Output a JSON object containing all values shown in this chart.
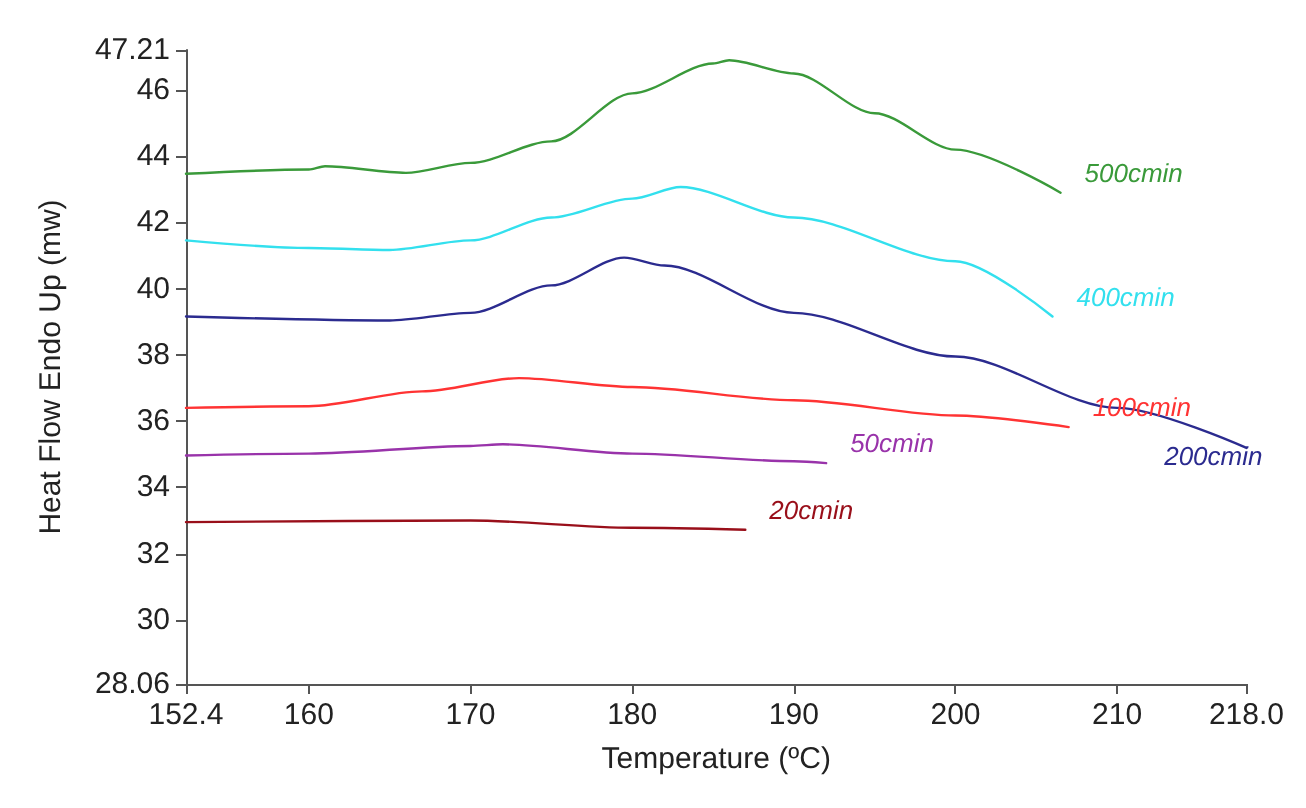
{
  "chart_data": {
    "type": "line",
    "xlabel": "Temperature (ºC)",
    "ylabel": "Heat Flow Endo Up (mw)",
    "xlim": [
      152.4,
      218.0
    ],
    "xticks": [
      152.4,
      160,
      170,
      180,
      190,
      200,
      210,
      {
        "value": 218,
        "label": "218.0"
      }
    ],
    "ylim": [
      28.06,
      47.21
    ],
    "yticks": [
      28.06,
      30,
      32,
      34,
      36,
      38,
      40,
      42,
      44,
      46,
      47.21
    ],
    "grid": false,
    "legend": false,
    "marker": "none",
    "line_style": "solid",
    "series": [
      {
        "name": "500cmin",
        "color": "#3a9a3a",
        "x": [
          152.4,
          160,
          161,
          166,
          170,
          175,
          180,
          185,
          186,
          190,
          195,
          200,
          206.5
        ],
        "values": [
          43.47,
          43.6,
          43.7,
          43.5,
          43.8,
          44.45,
          45.9,
          46.8,
          46.9,
          46.5,
          45.3,
          44.2,
          42.9
        ]
      },
      {
        "name": "400cmin",
        "color": "#33e0ee",
        "x": [
          152.4,
          160,
          165,
          170,
          175,
          180,
          183,
          190,
          200,
          206
        ],
        "values": [
          41.46,
          41.23,
          41.17,
          41.46,
          42.15,
          42.72,
          43.07,
          42.15,
          40.83,
          39.16
        ]
      },
      {
        "name": "200cmin",
        "color": "#2b2b8f",
        "x": [
          152.4,
          165,
          170,
          175,
          179.5,
          182,
          190,
          200,
          210,
          218
        ],
        "values": [
          39.16,
          39.04,
          39.27,
          40.1,
          40.94,
          40.7,
          39.27,
          37.95,
          36.4,
          35.19
        ]
      },
      {
        "name": "100cmin",
        "color": "#ff3333",
        "x": [
          152.4,
          160,
          167,
          173,
          180,
          190,
          200,
          207
        ],
        "values": [
          36.4,
          36.45,
          36.9,
          37.3,
          37.03,
          36.63,
          36.17,
          35.82
        ]
      },
      {
        "name": "50cmin",
        "color": "#9933aa",
        "x": [
          152.4,
          160,
          170,
          172,
          180,
          190,
          192
        ],
        "values": [
          34.96,
          35.02,
          35.25,
          35.3,
          35.02,
          34.79,
          34.73
        ]
      },
      {
        "name": "20cmin",
        "color": "#990f1a",
        "x": [
          152.4,
          170,
          180,
          187
        ],
        "values": [
          32.95,
          33.0,
          32.78,
          32.72
        ]
      }
    ]
  }
}
